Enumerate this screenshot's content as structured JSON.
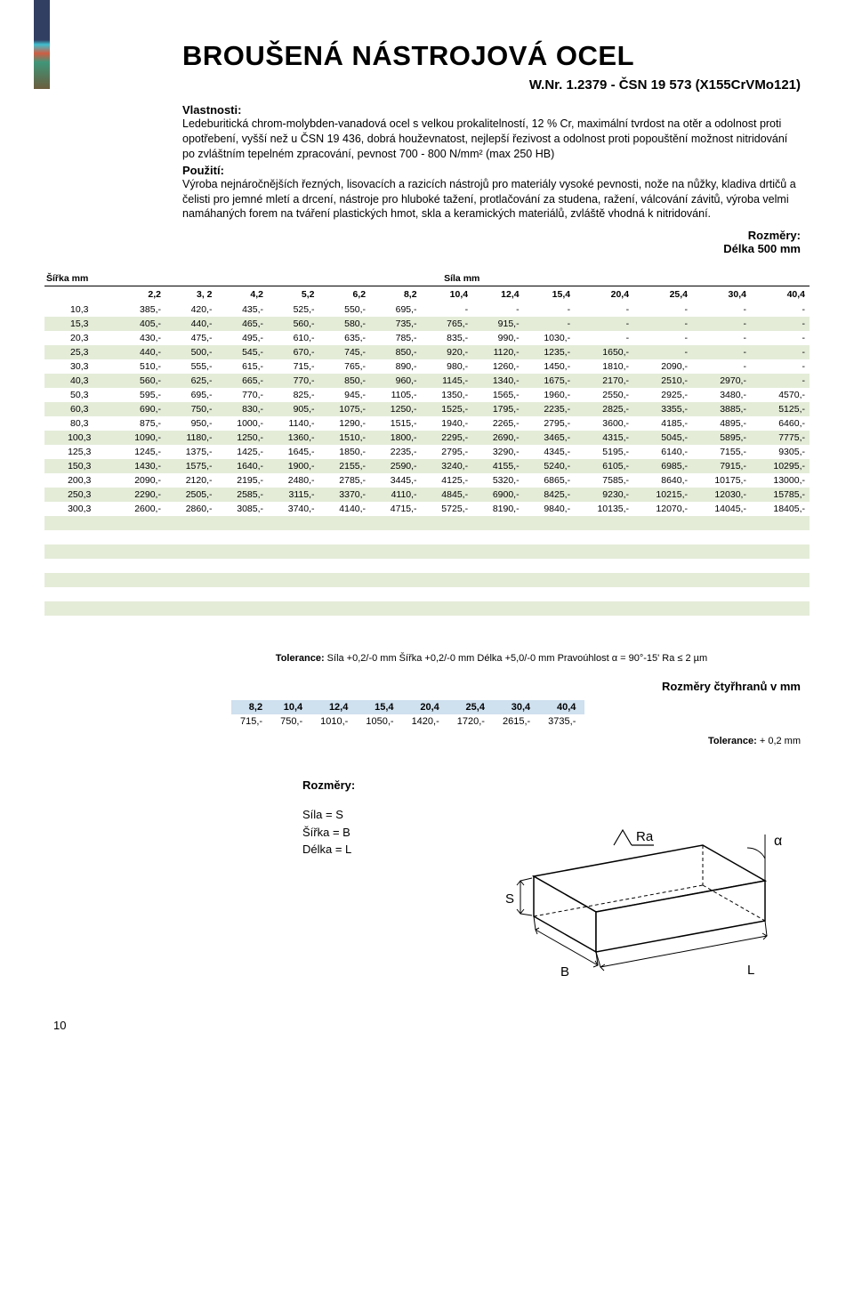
{
  "title": "BROUŠENÁ NÁSTROJOVÁ OCEL",
  "subtitle": "W.Nr. 1.2379 - ČSN 19 573 (X155CrVMo121)",
  "labels": {
    "properties": "Vlastnosti:",
    "use": "Použití:",
    "dimensions": "Rozměry:",
    "length": "Délka 500 mm",
    "width_col": "Šířka mm",
    "thickness_col": "Síla mm",
    "squares_title": "Rozměry čtyřhranů v mm",
    "tolerance2_label": "Tolerance:",
    "tolerance2_value": "+ 0,2 mm",
    "dims_label": "Rozměry:",
    "dims_s": "Síla   = S",
    "dims_b": "Šířka = B",
    "dims_l": "Délka = L",
    "ra": "Ra",
    "alpha": "α",
    "S": "S",
    "B": "B",
    "L": "L",
    "page": "10"
  },
  "properties_text": "Ledeburitická chrom-molybden-vanadová ocel s velkou prokalitelností, 12 % Cr, maximální tvrdost na otěr a odolnost proti opotřebení, vyšší než u ČSN 19 436, dobrá houževnatost, nejlepší řezivost a odolnost proti popouštění možnost  nitridování po zvláštním tepelném zpracování, pevnost 700 - 800 N/mm² (max 250 HB)",
  "use_text": "Výroba nejnáročnějších řezných, lisovacích a razicích nástrojů pro materiály vysoké pevnosti, nože na nůžky, kladiva drtičů  a čelisti pro jemné mletí a drcení, nástroje pro hluboké tažení, protlačování za studena, ražení, válcování závitů, výroba velmi namáhaných forem na tváření plastických hmot, skla a keramických materiálů, zvláště vhodná k nitridování.",
  "tolerance_line": "Tolerance: Síla +0,2/-0 mm  Šířka +0,2/-0 mm  Délka +5,0/-0 mm  Pravoúhlost α = 90°-15'   Ra ≤ 2 µm",
  "main_table": {
    "columns": [
      "2,2",
      "3, 2",
      "4,2",
      "5,2",
      "6,2",
      "8,2",
      "10,4",
      "12,4",
      "15,4",
      "20,4",
      "25,4",
      "30,4",
      "40,4"
    ],
    "rows": [
      {
        "w": "10,3",
        "v": [
          "385,-",
          "420,-",
          "435,-",
          "525,-",
          "550,-",
          "695,-",
          "-",
          "-",
          "-",
          "-",
          "-",
          "-",
          "-"
        ]
      },
      {
        "w": "15,3",
        "v": [
          "405,-",
          "440,-",
          "465,-",
          "560,-",
          "580,-",
          "735,-",
          "765,-",
          "915,-",
          "-",
          "-",
          "-",
          "-",
          "-"
        ]
      },
      {
        "w": "20,3",
        "v": [
          "430,-",
          "475,-",
          "495,-",
          "610,-",
          "635,-",
          "785,-",
          "835,-",
          "990,-",
          "1030,-",
          "-",
          "-",
          "-",
          "-"
        ]
      },
      {
        "w": "25,3",
        "v": [
          "440,-",
          "500,-",
          "545,-",
          "670,-",
          "745,-",
          "850,-",
          "920,-",
          "1120,-",
          "1235,-",
          "1650,-",
          "-",
          "-",
          "-"
        ]
      },
      {
        "w": "30,3",
        "v": [
          "510,-",
          "555,-",
          "615,-",
          "715,-",
          "765,-",
          "890,-",
          "980,-",
          "1260,-",
          "1450,-",
          "1810,-",
          "2090,-",
          "-",
          "-"
        ]
      },
      {
        "w": "40,3",
        "v": [
          "560,-",
          "625,-",
          "665,-",
          "770,-",
          "850,-",
          "960,-",
          "1145,-",
          "1340,-",
          "1675,-",
          "2170,-",
          "2510,-",
          "2970,-",
          "-"
        ]
      },
      {
        "w": "50,3",
        "v": [
          "595,-",
          "695,-",
          "770,-",
          "825,-",
          "945,-",
          "1105,-",
          "1350,-",
          "1565,-",
          "1960,-",
          "2550,-",
          "2925,-",
          "3480,-",
          "4570,-"
        ]
      },
      {
        "w": "60,3",
        "v": [
          "690,-",
          "750,-",
          "830,-",
          "905,-",
          "1075,-",
          "1250,-",
          "1525,-",
          "1795,-",
          "2235,-",
          "2825,-",
          "3355,-",
          "3885,-",
          "5125,-"
        ]
      },
      {
        "w": "80,3",
        "v": [
          "875,-",
          "950,-",
          "1000,-",
          "1140,-",
          "1290,-",
          "1515,-",
          "1940,-",
          "2265,-",
          "2795,-",
          "3600,-",
          "4185,-",
          "4895,-",
          "6460,-"
        ]
      },
      {
        "w": "100,3",
        "v": [
          "1090,-",
          "1180,-",
          "1250,-",
          "1360,-",
          "1510,-",
          "1800,-",
          "2295,-",
          "2690,-",
          "3465,-",
          "4315,-",
          "5045,-",
          "5895,-",
          "7775,-"
        ]
      },
      {
        "w": "125,3",
        "v": [
          "1245,-",
          "1375,-",
          "1425,-",
          "1645,-",
          "1850,-",
          "2235,-",
          "2795,-",
          "3290,-",
          "4345,-",
          "5195,-",
          "6140,-",
          "7155,-",
          "9305,-"
        ]
      },
      {
        "w": "150,3",
        "v": [
          "1430,-",
          "1575,-",
          "1640,-",
          "1900,-",
          "2155,-",
          "2590,-",
          "3240,-",
          "4155,-",
          "5240,-",
          "6105,-",
          "6985,-",
          "7915,-",
          "10295,-"
        ]
      },
      {
        "w": "200,3",
        "v": [
          "2090,-",
          "2120,-",
          "2195,-",
          "2480,-",
          "2785,-",
          "3445,-",
          "4125,-",
          "5320,-",
          "6865,-",
          "7585,-",
          "8640,-",
          "10175,-",
          "13000,-"
        ]
      },
      {
        "w": "250,3",
        "v": [
          "2290,-",
          "2505,-",
          "2585,-",
          "3115,-",
          "3370,-",
          "4110,-",
          "4845,-",
          "6900,-",
          "8425,-",
          "9230,-",
          "10215,-",
          "12030,-",
          "15785,-"
        ]
      },
      {
        "w": "300,3",
        "v": [
          "2600,-",
          "2860,-",
          "3085,-",
          "3740,-",
          "4140,-",
          "4715,-",
          "5725,-",
          "8190,-",
          "9840,-",
          "10135,-",
          "12070,-",
          "14045,-",
          "18405,-"
        ]
      }
    ],
    "stripe_color": "#e4ecd8"
  },
  "squares_table": {
    "columns": [
      "8,2",
      "10,4",
      "12,4",
      "15,4",
      "20,4",
      "25,4",
      "30,4",
      "40,4"
    ],
    "row": [
      "715,-",
      "750,-",
      "1010,-",
      "1050,-",
      "1420,-",
      "1720,-",
      "2615,-",
      "3735,-"
    ],
    "header_bg": "#cfe0ef"
  },
  "diagram": {
    "stroke": "#000000",
    "fill": "#ffffff",
    "label_fontsize": 15
  }
}
